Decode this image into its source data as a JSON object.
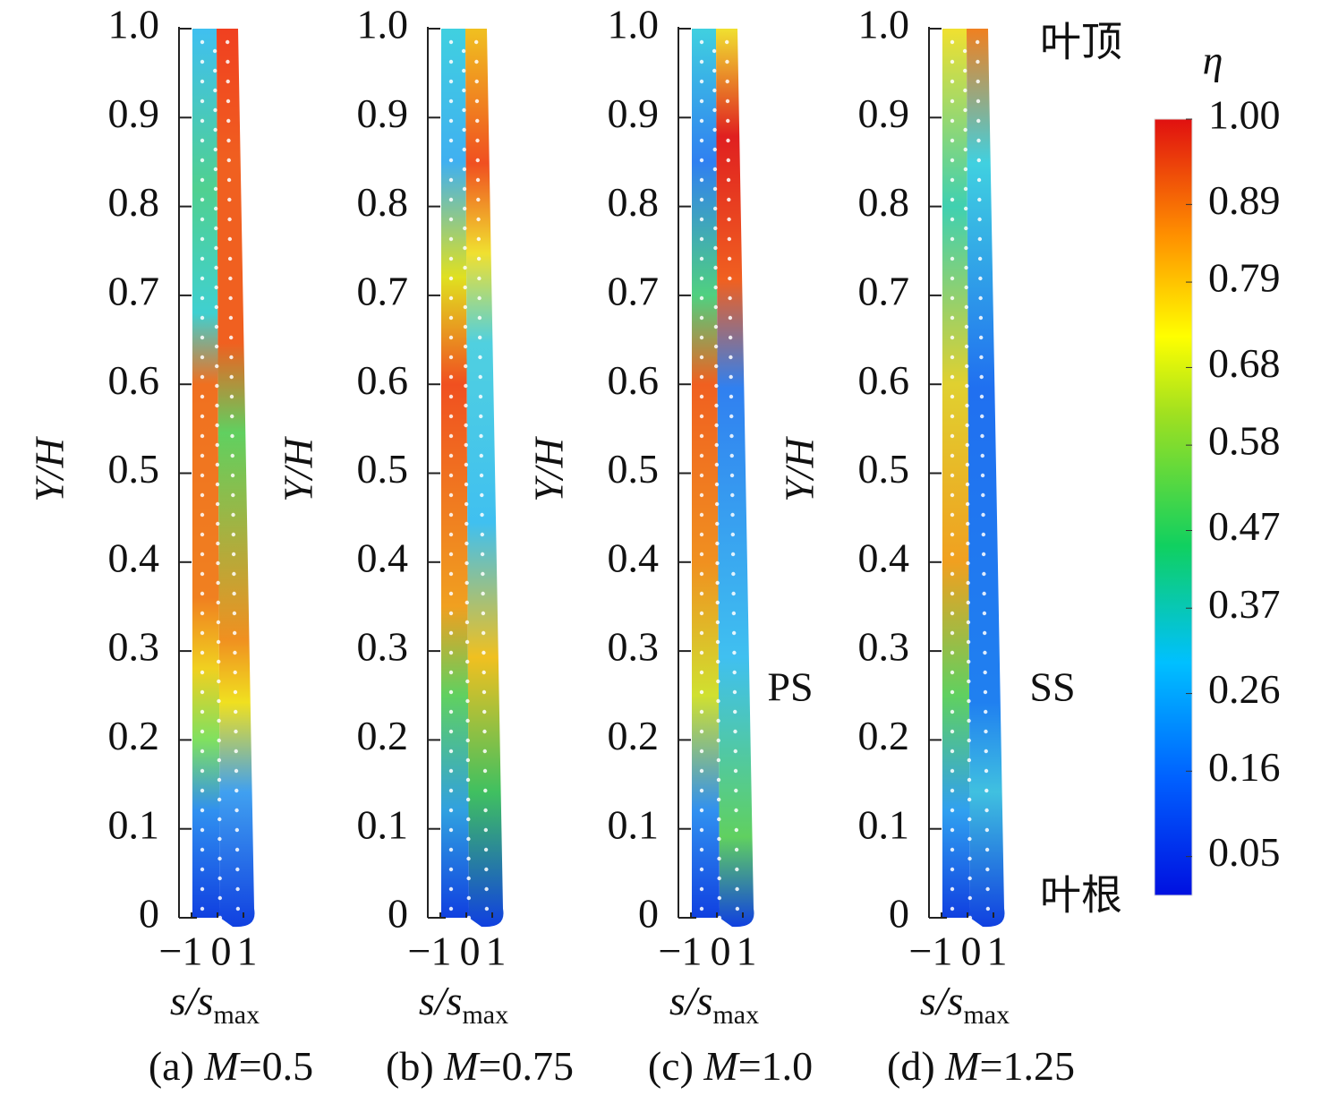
{
  "chart_data": [
    {
      "type": "contour",
      "ylabel": "Y/H",
      "xlabel": "s/s",
      "xlabel_sub": "max",
      "panel": "(a)",
      "param": "M",
      "param_value": "=0.5",
      "xlim": [
        -1,
        1
      ],
      "xticks": [
        {
          "value": -1,
          "label": "−1"
        },
        0,
        1
      ],
      "ylim": [
        0,
        1
      ],
      "yticks": [
        0,
        0.1,
        0.2,
        0.3,
        0.4,
        0.5,
        0.6,
        0.7,
        0.8,
        0.9,
        {
          "value": 1,
          "label": "1.0"
        }
      ]
    },
    {
      "type": "contour",
      "ylabel": "Y/H",
      "xlabel": "s/s",
      "xlabel_sub": "max",
      "panel": "(b)",
      "param": "M",
      "param_value": "=0.75",
      "xlim": [
        -1,
        1
      ],
      "xticks": [
        {
          "value": -1,
          "label": "−1"
        },
        0,
        1
      ],
      "ylim": [
        0,
        1
      ],
      "yticks": [
        0,
        0.1,
        0.2,
        0.3,
        0.4,
        0.5,
        0.6,
        0.7,
        0.8,
        0.9,
        {
          "value": 1,
          "label": "1.0"
        }
      ]
    },
    {
      "type": "contour",
      "ylabel": "Y/H",
      "xlabel": "s/s",
      "xlabel_sub": "max",
      "panel": "(c)",
      "param": "M",
      "param_value": "=1.0",
      "xlim": [
        -1,
        1
      ],
      "xticks": [
        {
          "value": -1,
          "label": "−1"
        },
        0,
        1
      ],
      "ylim": [
        0,
        1
      ],
      "yticks": [
        0,
        0.1,
        0.2,
        0.3,
        0.4,
        0.5,
        0.6,
        0.7,
        0.8,
        0.9,
        {
          "value": 1,
          "label": "1.0"
        }
      ]
    },
    {
      "type": "contour",
      "ylabel": "Y/H",
      "xlabel": "s/s",
      "xlabel_sub": "max",
      "panel": "(d)",
      "param": "M",
      "param_value": "=1.25",
      "xlim": [
        -1,
        1
      ],
      "xticks": [
        {
          "value": -1,
          "label": "−1"
        },
        0,
        1
      ],
      "ylim": [
        0,
        1
      ],
      "yticks": [
        0,
        0.1,
        0.2,
        0.3,
        0.4,
        0.5,
        0.6,
        0.7,
        0.8,
        0.9,
        {
          "value": 1,
          "label": "1.0"
        }
      ]
    }
  ],
  "colorbar": {
    "title": "η",
    "ylim": [
      0,
      1
    ],
    "ticks": [
      0.05,
      0.16,
      0.26,
      0.37,
      0.47,
      0.58,
      0.68,
      0.79,
      0.89,
      {
        "value": 1,
        "label": "1.00"
      }
    ]
  },
  "annotations": {
    "tip": "叶顶",
    "root": "叶根",
    "pressure_side": "PS",
    "suction_side": "SS"
  }
}
